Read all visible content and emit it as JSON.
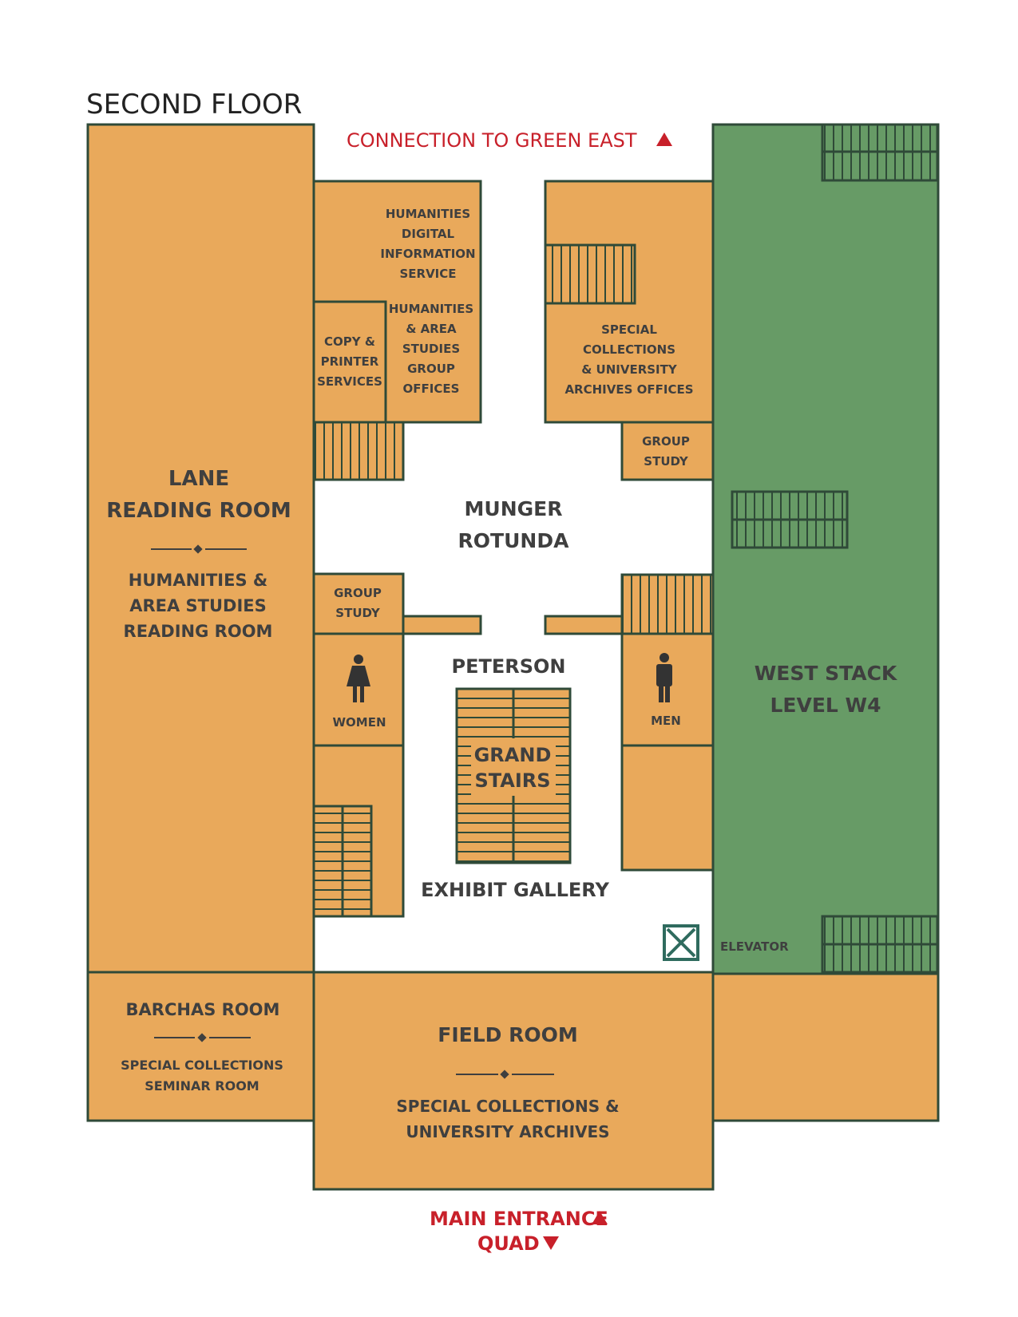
{
  "title": "SECOND FLOOR",
  "colors": {
    "room": "#e9a95b",
    "stack": "#679b66",
    "outline": "#2f4a38",
    "accent_red": "#c8202a",
    "text": "#3f3f3f"
  },
  "top_connection": "CONNECTION TO GREEN EAST",
  "rooms": {
    "lane_line1": "LANE",
    "lane_line2": "READING ROOM",
    "lane_sub1": "HUMANITIES &",
    "lane_sub2": "AREA STUDIES",
    "lane_sub3": "READING ROOM",
    "hdis_1": "HUMANITIES",
    "hdis_2": "DIGITAL",
    "hdis_3": "INFORMATION",
    "hdis_4": "SERVICE",
    "has_1": "HUMANITIES",
    "has_2": "& AREA",
    "has_3": "STUDIES",
    "has_4": "GROUP",
    "has_5": "OFFICES",
    "copy_1": "COPY &",
    "copy_2": "PRINTER",
    "copy_3": "SERVICES",
    "spc_1": "SPECIAL",
    "spc_2": "COLLECTIONS",
    "spc_3": "& UNIVERSITY",
    "spc_4": "ARCHIVES OFFICES",
    "gs_right_1": "GROUP",
    "gs_right_2": "STUDY",
    "gs_left_1": "GROUP",
    "gs_left_2": "STUDY",
    "munger_1": "MUNGER",
    "munger_2": "ROTUNDA",
    "peterson": "PETERSON",
    "grand_1": "GRAND",
    "grand_2": "STAIRS",
    "exhibit": "EXHIBIT GALLERY",
    "women": "WOMEN",
    "men": "MEN",
    "west_1": "WEST STACK",
    "west_2": "LEVEL W4",
    "elevator": "ELEVATOR",
    "barchas_1": "BARCHAS ROOM",
    "barchas_sub1": "SPECIAL COLLECTIONS",
    "barchas_sub2": "SEMINAR ROOM",
    "field_1": "FIELD ROOM",
    "field_sub1": "SPECIAL COLLECTIONS &",
    "field_sub2": "UNIVERSITY ARCHIVES"
  },
  "bottom": {
    "entrance": "MAIN ENTRANCE",
    "quad": "QUAD"
  },
  "icons": [
    "arrow-up-icon",
    "arrow-down-icon",
    "women-restroom-icon",
    "men-restroom-icon",
    "elevator-icon",
    "stairs-icon",
    "divider-diamond-icon"
  ]
}
